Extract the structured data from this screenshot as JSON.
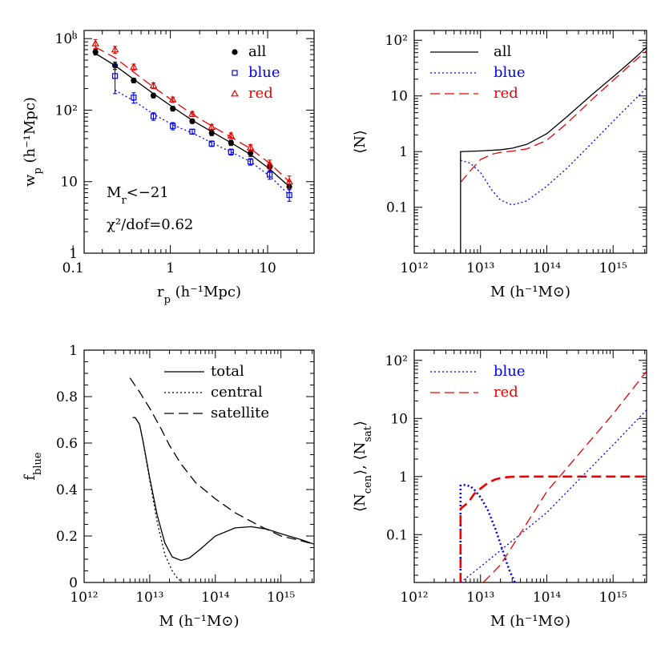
{
  "chart_data": [
    {
      "id": "wp",
      "type": "scatter",
      "xscale": "log",
      "yscale": "log",
      "xlim": [
        0.13,
        30
      ],
      "ylim": [
        1,
        1300
      ],
      "xlabel": "r_p (h⁻¹Mpc)",
      "ylabel": "w_p (h⁻¹Mpc)",
      "xticks": [
        0.1,
        1,
        10
      ],
      "xticklabels": [
        "0.1",
        "1",
        "10"
      ],
      "yticks": [
        1,
        10,
        100,
        1000
      ],
      "yticklabels": [
        "1",
        "10",
        "10²",
        "10³"
      ],
      "legend": {
        "position": "top-right",
        "entries": [
          {
            "label": "all",
            "color": "#000000",
            "marker": "dot"
          },
          {
            "label": "blue",
            "color": "#0000ee",
            "marker": "square"
          },
          {
            "label": "red",
            "color": "#ee0000",
            "marker": "triangle"
          }
        ]
      },
      "annotations": [
        "M_r<−21",
        "χ²/dof=0.62"
      ],
      "series": [
        {
          "name": "all",
          "color": "#000000",
          "marker": "dot",
          "x": [
            0.17,
            0.27,
            0.42,
            0.67,
            1.06,
            1.68,
            2.66,
            4.2,
            6.66,
            10.5,
            16.7
          ],
          "y": [
            650,
            420,
            260,
            160,
            105,
            70,
            48,
            35,
            25,
            16,
            8.5
          ],
          "err": [
            60,
            50,
            20,
            12,
            8,
            5,
            4,
            3,
            2.5,
            2,
            1.5
          ],
          "model": {
            "style": "solid",
            "x": [
              0.17,
              0.27,
              0.42,
              0.67,
              1.06,
              1.68,
              2.66,
              4.2,
              6.66,
              10.5,
              16.7
            ],
            "y": [
              620,
              420,
              270,
              170,
              110,
              72,
              50,
              35,
              24,
              15,
              8.5
            ]
          }
        },
        {
          "name": "blue",
          "color": "#0000ee",
          "marker": "square",
          "x": [
            0.27,
            0.42,
            0.67,
            1.06,
            1.68,
            2.66,
            4.2,
            6.66,
            10.5,
            16.7
          ],
          "y": [
            300,
            150,
            82,
            60,
            50,
            34,
            26,
            19,
            12.5,
            6.5
          ],
          "err": [
            130,
            25,
            10,
            7,
            4,
            3,
            2.5,
            2,
            1.7,
            1.2
          ],
          "model": {
            "style": "dotted",
            "x": [
              0.27,
              0.42,
              0.67,
              1.06,
              1.68,
              2.66,
              4.2,
              6.66,
              10.5,
              16.7
            ],
            "y": [
              190,
              135,
              88,
              62,
              48,
              35,
              26,
              19,
              12,
              6.5
            ]
          }
        },
        {
          "name": "red",
          "color": "#ee0000",
          "marker": "triangle",
          "x": [
            0.17,
            0.27,
            0.42,
            0.67,
            1.06,
            1.68,
            2.66,
            4.2,
            6.66,
            10.5,
            16.7
          ],
          "y": [
            850,
            700,
            400,
            220,
            140,
            88,
            58,
            44,
            30,
            17.5,
            10
          ],
          "err": [
            120,
            80,
            40,
            20,
            12,
            7,
            5,
            4,
            3,
            2.5,
            2
          ],
          "model": {
            "style": "dashed",
            "x": [
              0.17,
              0.27,
              0.42,
              0.67,
              1.06,
              1.68,
              2.66,
              4.2,
              6.66,
              10.5,
              16.7
            ],
            "y": [
              760,
              540,
              340,
              210,
              135,
              88,
              60,
              42,
              29,
              18,
              10
            ]
          }
        }
      ]
    },
    {
      "id": "N",
      "type": "line",
      "xscale": "log",
      "yscale": "log",
      "xlim": [
        1000000000000.0,
        3200000000000000.0
      ],
      "ylim": [
        0.015,
        150
      ],
      "xlabel": "M (h⁻¹M⊙)",
      "ylabel": "⟨N⟩",
      "xticks": [
        1000000000000.0,
        10000000000000.0,
        100000000000000.0,
        1000000000000000.0
      ],
      "xticklabels": [
        "10¹²",
        "10¹³",
        "10¹⁴",
        "10¹⁵"
      ],
      "yticks": [
        0.1,
        1,
        10,
        100
      ],
      "yticklabels": [
        "0.1",
        "1",
        "10",
        "10²"
      ],
      "legend": {
        "position": "top-left",
        "entries": [
          {
            "label": "all",
            "color": "#000000",
            "style": "solid"
          },
          {
            "label": "blue",
            "color": "#0000ee",
            "style": "dotted"
          },
          {
            "label": "red",
            "color": "#ee0000",
            "style": "dashed"
          }
        ]
      },
      "series": [
        {
          "name": "all",
          "color": "#000000",
          "style": "solid",
          "x": [
            5000000000000.0,
            5000000000000.0,
            10000000000000.0,
            20000000000000.0,
            30000000000000.0,
            50000000000000.0,
            100000000000000.0,
            200000000000000.0,
            500000000000000.0,
            1000000000000000.0,
            2000000000000000.0,
            3200000000000000.0
          ],
          "y": [
            0.015,
            1.0,
            1.03,
            1.08,
            1.15,
            1.35,
            2.1,
            4.2,
            11,
            22,
            45,
            75
          ]
        },
        {
          "name": "blue",
          "color": "#0000ee",
          "style": "dotted",
          "x": [
            5000000000000.0,
            7000000000000.0,
            10000000000000.0,
            15000000000000.0,
            20000000000000.0,
            30000000000000.0,
            50000000000000.0,
            100000000000000.0,
            200000000000000.0,
            500000000000000.0,
            1000000000000000.0,
            2000000000000000.0,
            3200000000000000.0
          ],
          "y": [
            0.7,
            0.62,
            0.42,
            0.2,
            0.135,
            0.11,
            0.13,
            0.24,
            0.5,
            1.5,
            3.5,
            8,
            14
          ]
        },
        {
          "name": "red",
          "color": "#ee0000",
          "style": "dashed",
          "x": [
            5000000000000.0,
            7000000000000.0,
            10000000000000.0,
            15000000000000.0,
            20000000000000.0,
            30000000000000.0,
            50000000000000.0,
            100000000000000.0,
            200000000000000.0,
            500000000000000.0,
            1000000000000000.0,
            2000000000000000.0,
            3200000000000000.0
          ],
          "y": [
            0.28,
            0.45,
            0.72,
            0.9,
            0.97,
            1.02,
            1.12,
            1.6,
            3.2,
            9,
            19,
            40,
            65
          ]
        }
      ]
    },
    {
      "id": "fblue",
      "type": "line",
      "xscale": "log",
      "yscale": "linear",
      "xlim": [
        1000000000000.0,
        3200000000000000.0
      ],
      "ylim": [
        0,
        1
      ],
      "xlabel": "M (h⁻¹M⊙)",
      "ylabel": "f_blue",
      "xticks": [
        1000000000000.0,
        10000000000000.0,
        100000000000000.0,
        1000000000000000.0
      ],
      "xticklabels": [
        "10¹²",
        "10¹³",
        "10¹⁴",
        "10¹⁵"
      ],
      "yticks": [
        0,
        0.2,
        0.4,
        0.6,
        0.8,
        1
      ],
      "yticklabels": [
        "0",
        "0.2",
        "0.4",
        "0.6",
        "0.8",
        "1"
      ],
      "legend": {
        "position": "top-right",
        "entries": [
          {
            "label": "total",
            "color": "#000000",
            "style": "solid"
          },
          {
            "label": "central",
            "color": "#000000",
            "style": "dotted"
          },
          {
            "label": "satellite",
            "color": "#000000",
            "style": "dashed"
          }
        ]
      },
      "series": [
        {
          "name": "total",
          "color": "#000000",
          "style": "solid",
          "x": [
            5500000000000.0,
            6000000000000.0,
            7000000000000.0,
            8000000000000.0,
            10000000000000.0,
            13000000000000.0,
            17000000000000.0,
            22000000000000.0,
            30000000000000.0,
            40000000000000.0,
            60000000000000.0,
            100000000000000.0,
            200000000000000.0,
            350000000000000.0,
            600000000000000.0,
            1000000000000000.0,
            2000000000000000.0,
            3200000000000000.0
          ],
          "y": [
            0.71,
            0.71,
            0.68,
            0.6,
            0.45,
            0.29,
            0.17,
            0.11,
            0.095,
            0.105,
            0.145,
            0.2,
            0.235,
            0.24,
            0.23,
            0.21,
            0.185,
            0.165
          ]
        },
        {
          "name": "central",
          "color": "#000000",
          "style": "dotted",
          "x": [
            5500000000000.0,
            6000000000000.0,
            7000000000000.0,
            8000000000000.0,
            10000000000000.0,
            13000000000000.0,
            17000000000000.0,
            22000000000000.0,
            27000000000000.0,
            32000000000000.0
          ],
          "y": [
            0.71,
            0.71,
            0.68,
            0.6,
            0.44,
            0.26,
            0.12,
            0.05,
            0.015,
            0
          ]
        },
        {
          "name": "satellite",
          "color": "#000000",
          "style": "dashed",
          "x": [
            5000000000000.0,
            7000000000000.0,
            10000000000000.0,
            15000000000000.0,
            20000000000000.0,
            30000000000000.0,
            50000000000000.0,
            100000000000000.0,
            200000000000000.0,
            500000000000000.0,
            1000000000000000.0,
            2000000000000000.0,
            3200000000000000.0
          ],
          "y": [
            0.88,
            0.82,
            0.75,
            0.66,
            0.59,
            0.51,
            0.43,
            0.36,
            0.3,
            0.24,
            0.2,
            0.18,
            0.165
          ]
        }
      ]
    },
    {
      "id": "Ncensat",
      "type": "line",
      "xscale": "log",
      "yscale": "log",
      "xlim": [
        1000000000000.0,
        3200000000000000.0
      ],
      "ylim": [
        0.015,
        150
      ],
      "xlabel": "M (h⁻¹M⊙)",
      "ylabel": "⟨N_cen⟩, ⟨N_sat⟩",
      "xticks": [
        1000000000000.0,
        10000000000000.0,
        100000000000000.0,
        1000000000000000.0
      ],
      "xticklabels": [
        "10¹²",
        "10¹³",
        "10¹⁴",
        "10¹⁵"
      ],
      "yticks": [
        0.1,
        1,
        10,
        100
      ],
      "yticklabels": [
        "0.1",
        "1",
        "10",
        "10²"
      ],
      "legend": {
        "position": "top-left",
        "entries": [
          {
            "label": "blue",
            "color": "#0000ee",
            "style": "dotted"
          },
          {
            "label": "red",
            "color": "#ee0000",
            "style": "dashed"
          }
        ]
      },
      "series": [
        {
          "name": "blue",
          "color": "#0000ee",
          "style": "dotted",
          "thick": true,
          "x": [
            5000000000000.0,
            5000000000000.0,
            5300000000000.0,
            6000000000000.0,
            7000000000000.0,
            8000000000000.0,
            10000000000000.0,
            13000000000000.0,
            17000000000000.0,
            22000000000000.0,
            27000000000000.0,
            33000000000000.0
          ],
          "y": [
            0.015,
            0.7,
            0.72,
            0.71,
            0.68,
            0.6,
            0.44,
            0.26,
            0.12,
            0.05,
            0.025,
            0.015
          ]
        },
        {
          "name": "red",
          "color": "#ee0000",
          "style": "dashed",
          "thick": true,
          "x": [
            5000000000000.0,
            5000000000000.0,
            6000000000000.0,
            7000000000000.0,
            8000000000000.0,
            10000000000000.0,
            13000000000000.0,
            17000000000000.0,
            22000000000000.0,
            30000000000000.0,
            50000000000000.0,
            100000000000000.0,
            1000000000000000.0,
            3200000000000000.0
          ],
          "y": [
            0.015,
            0.28,
            0.33,
            0.4,
            0.5,
            0.62,
            0.78,
            0.9,
            0.96,
            0.99,
            1.0,
            1.0,
            1.0,
            1.0
          ]
        },
        {
          "name": "blue",
          "color": "#0000ee",
          "style": "dotted",
          "x": [
            5000000000000.0,
            10000000000000.0,
            100000000000000.0,
            1000000000000000.0,
            3200000000000000.0
          ],
          "y": [
            0.015,
            0.028,
            0.24,
            3.5,
            14
          ]
        },
        {
          "name": "red",
          "color": "#ee0000",
          "style": "dashed",
          "x": [
            11000000000000.0,
            20000000000000.0,
            100000000000000.0,
            1000000000000000.0,
            3200000000000000.0
          ],
          "y": [
            0.015,
            0.03,
            0.55,
            12,
            65
          ]
        }
      ]
    }
  ]
}
